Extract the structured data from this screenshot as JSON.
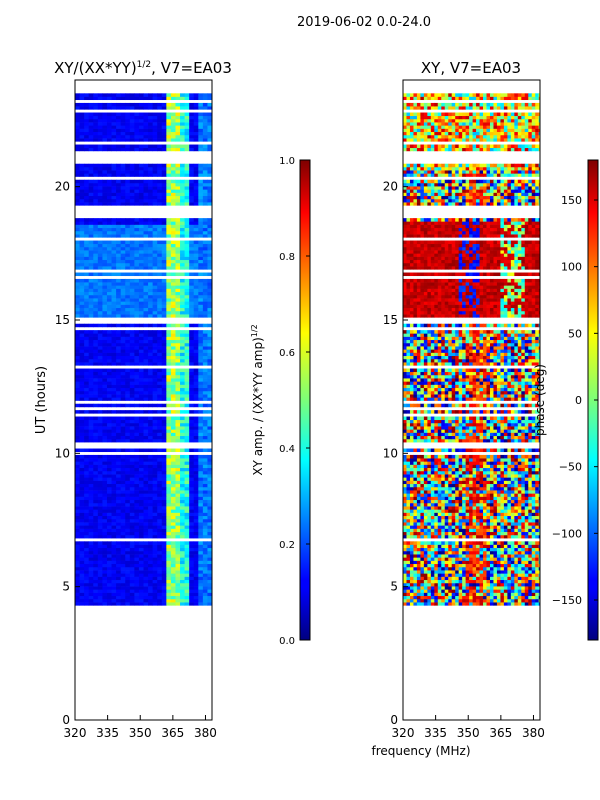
{
  "figure_title": "2019-06-02 0.0-24.0",
  "shared_xlabel": "frequency (MHz)",
  "chart_data": [
    {
      "type": "heatmap",
      "title": "XY/(XX*YY)",
      "title_exponent": "1/2",
      "title_suffix": ", V7=EA03",
      "xlabel": "",
      "ylabel": "UT (hours)",
      "xlim": [
        320,
        383
      ],
      "ylim": [
        0,
        24
      ],
      "xticks": [
        320,
        335,
        350,
        365,
        380
      ],
      "yticks": [
        0,
        5,
        10,
        15,
        20
      ],
      "data_time_range": [
        4.3,
        24
      ],
      "colorbar": {
        "label": "XY amp. / (XX*YY amp)",
        "label_exponent": "1/2",
        "range": [
          0.0,
          1.0
        ],
        "ticks": [
          "0.0",
          "0.2",
          "0.4",
          "0.6",
          "0.8",
          "1.0"
        ],
        "colormap": "jet"
      }
    },
    {
      "type": "heatmap",
      "title": "XY, V7=EA03",
      "xlabel": "frequency (MHz)",
      "ylabel": "",
      "xlim": [
        320,
        383
      ],
      "ylim": [
        0,
        24
      ],
      "xticks": [
        320,
        335,
        350,
        365,
        380
      ],
      "yticks": [
        0,
        5,
        10,
        15,
        20
      ],
      "data_time_range": [
        4.3,
        24
      ],
      "colorbar": {
        "label": "phase (deg)",
        "range": [
          -180,
          180
        ],
        "ticks": [
          "−150",
          "−100",
          "−50",
          "0",
          "50",
          "100",
          "150"
        ],
        "colormap": "jet"
      }
    }
  ]
}
